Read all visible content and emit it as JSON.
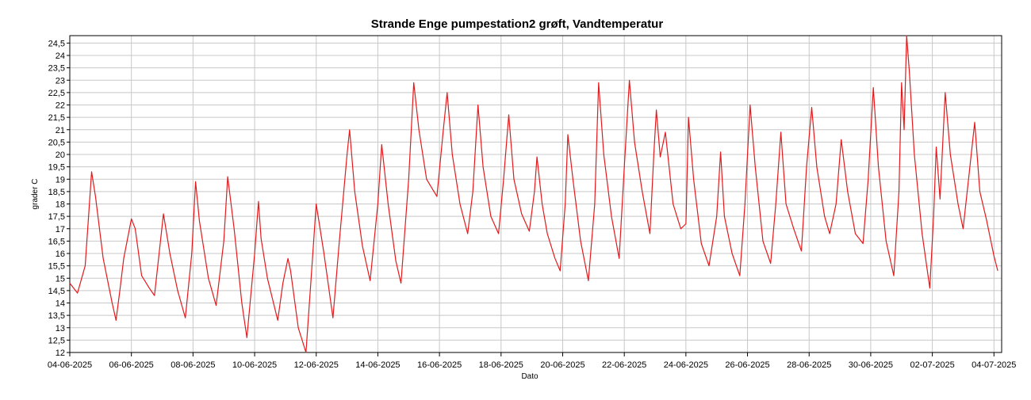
{
  "chart_data": {
    "type": "line",
    "title": "Strande Enge pumpestation2 grøft, Vandtemperatur",
    "xlabel": "Dato",
    "ylabel": "grader C",
    "ylim": [
      12,
      24.8
    ],
    "y_ticks": [
      "12",
      "12,5",
      "13",
      "13,5",
      "14",
      "14,5",
      "15",
      "15,5",
      "16",
      "16,5",
      "17",
      "17,5",
      "18",
      "18,5",
      "19",
      "19,5",
      "20",
      "20,5",
      "21",
      "21,5",
      "22",
      "22,5",
      "23",
      "23,5",
      "24",
      "24,5"
    ],
    "x_ticks": [
      "04-06-2025",
      "06-06-2025",
      "08-06-2025",
      "10-06-2025",
      "12-06-2025",
      "14-06-2025",
      "16-06-2025",
      "18-06-2025",
      "20-06-2025",
      "22-06-2025",
      "24-06-2025",
      "26-06-2025",
      "28-06-2025",
      "30-06-2025",
      "02-07-2025",
      "04-07-2025"
    ],
    "xlim": [
      "2025-06-04 00:00",
      "2025-07-04 06:00"
    ],
    "grid": true,
    "line_color": "#e31a1c",
    "series": [
      {
        "values": [
          [
            "2025-06-04 00:00",
            14.8
          ],
          [
            "2025-06-04 06:00",
            14.4
          ],
          [
            "2025-06-04 12:00",
            15.5
          ],
          [
            "2025-06-04 15:00",
            17.8
          ],
          [
            "2025-06-04 17:00",
            19.3
          ],
          [
            "2025-06-04 20:00",
            18.3
          ],
          [
            "2025-06-05 02:00",
            15.8
          ],
          [
            "2025-06-05 09:00",
            14.0
          ],
          [
            "2025-06-05 12:00",
            13.3
          ],
          [
            "2025-06-05 15:00",
            14.5
          ],
          [
            "2025-06-05 18:00",
            15.8
          ],
          [
            "2025-06-06 00:00",
            17.4
          ],
          [
            "2025-06-06 03:00",
            17.0
          ],
          [
            "2025-06-06 08:00",
            15.1
          ],
          [
            "2025-06-06 14:00",
            14.6
          ],
          [
            "2025-06-06 18:00",
            14.3
          ],
          [
            "2025-06-06 22:00",
            16.2
          ],
          [
            "2025-06-07 01:00",
            17.6
          ],
          [
            "2025-06-07 06:00",
            16.0
          ],
          [
            "2025-06-07 12:00",
            14.5
          ],
          [
            "2025-06-07 18:00",
            13.4
          ],
          [
            "2025-06-07 23:00",
            16.0
          ],
          [
            "2025-06-08 02:00",
            18.9
          ],
          [
            "2025-06-08 05:00",
            17.3
          ],
          [
            "2025-06-08 12:00",
            15.0
          ],
          [
            "2025-06-08 18:00",
            13.9
          ],
          [
            "2025-06-09 00:00",
            16.5
          ],
          [
            "2025-06-09 03:00",
            19.1
          ],
          [
            "2025-06-09 08:00",
            17.0
          ],
          [
            "2025-06-09 14:00",
            14.0
          ],
          [
            "2025-06-09 18:00",
            12.6
          ],
          [
            "2025-06-10 00:00",
            16.0
          ],
          [
            "2025-06-10 03:00",
            18.1
          ],
          [
            "2025-06-10 05:00",
            16.6
          ],
          [
            "2025-06-10 10:00",
            15.0
          ],
          [
            "2025-06-10 18:00",
            13.3
          ],
          [
            "2025-06-10 22:00",
            14.8
          ],
          [
            "2025-06-11 02:00",
            15.8
          ],
          [
            "2025-06-11 04:00",
            15.3
          ],
          [
            "2025-06-11 10:00",
            13.0
          ],
          [
            "2025-06-11 16:00",
            12.0
          ],
          [
            "2025-06-11 20:00",
            15.0
          ],
          [
            "2025-06-12 00:00",
            18.0
          ],
          [
            "2025-06-12 06:00",
            16.0
          ],
          [
            "2025-06-12 13:00",
            13.4
          ],
          [
            "2025-06-12 18:00",
            16.5
          ],
          [
            "2025-06-13 00:00",
            20.0
          ],
          [
            "2025-06-13 02:00",
            21.0
          ],
          [
            "2025-06-13 06:00",
            18.5
          ],
          [
            "2025-06-13 12:00",
            16.3
          ],
          [
            "2025-06-13 18:00",
            14.9
          ],
          [
            "2025-06-14 00:00",
            18.0
          ],
          [
            "2025-06-14 03:00",
            20.4
          ],
          [
            "2025-06-14 08:00",
            18.0
          ],
          [
            "2025-06-14 14:00",
            15.7
          ],
          [
            "2025-06-14 18:00",
            14.8
          ],
          [
            "2025-06-15 00:00",
            19.0
          ],
          [
            "2025-06-15 04:00",
            22.9
          ],
          [
            "2025-06-15 08:00",
            21.0
          ],
          [
            "2025-06-15 14:00",
            19.0
          ],
          [
            "2025-06-15 22:00",
            18.3
          ],
          [
            "2025-06-16 03:00",
            21.0
          ],
          [
            "2025-06-16 06:00",
            22.5
          ],
          [
            "2025-06-16 10:00",
            20.0
          ],
          [
            "2025-06-16 16:00",
            18.0
          ],
          [
            "2025-06-16 22:00",
            16.8
          ],
          [
            "2025-06-17 02:00",
            18.5
          ],
          [
            "2025-06-17 06:00",
            22.0
          ],
          [
            "2025-06-17 10:00",
            19.5
          ],
          [
            "2025-06-17 16:00",
            17.5
          ],
          [
            "2025-06-17 22:00",
            16.8
          ],
          [
            "2025-06-18 02:00",
            19.0
          ],
          [
            "2025-06-18 06:00",
            21.6
          ],
          [
            "2025-06-18 10:00",
            19.0
          ],
          [
            "2025-06-18 16:00",
            17.6
          ],
          [
            "2025-06-18 22:00",
            16.9
          ],
          [
            "2025-06-19 02:00",
            18.5
          ],
          [
            "2025-06-19 04:00",
            19.9
          ],
          [
            "2025-06-19 08:00",
            18.0
          ],
          [
            "2025-06-19 12:00",
            16.8
          ],
          [
            "2025-06-19 18:00",
            15.8
          ],
          [
            "2025-06-19 22:00",
            15.3
          ],
          [
            "2025-06-20 02:00",
            18.0
          ],
          [
            "2025-06-20 04:00",
            20.8
          ],
          [
            "2025-06-20 08:00",
            19.0
          ],
          [
            "2025-06-20 14:00",
            16.5
          ],
          [
            "2025-06-20 20:00",
            14.9
          ],
          [
            "2025-06-21 01:00",
            18.0
          ],
          [
            "2025-06-21 04:00",
            22.9
          ],
          [
            "2025-06-21 08:00",
            20.0
          ],
          [
            "2025-06-21 14:00",
            17.5
          ],
          [
            "2025-06-21 20:00",
            15.8
          ],
          [
            "2025-06-22 00:00",
            19.5
          ],
          [
            "2025-06-22 04:00",
            23.0
          ],
          [
            "2025-06-22 08:00",
            20.5
          ],
          [
            "2025-06-22 14:00",
            18.5
          ],
          [
            "2025-06-22 20:00",
            16.8
          ],
          [
            "2025-06-22 23:00",
            20.0
          ],
          [
            "2025-06-23 01:00",
            21.8
          ],
          [
            "2025-06-23 04:00",
            19.9
          ],
          [
            "2025-06-23 08:00",
            20.9
          ],
          [
            "2025-06-23 14:00",
            18.0
          ],
          [
            "2025-06-23 20:00",
            17.0
          ],
          [
            "2025-06-24 00:00",
            17.2
          ],
          [
            "2025-06-24 02:00",
            21.5
          ],
          [
            "2025-06-24 06:00",
            19.0
          ],
          [
            "2025-06-24 12:00",
            16.4
          ],
          [
            "2025-06-24 18:00",
            15.5
          ],
          [
            "2025-06-25 00:00",
            17.5
          ],
          [
            "2025-06-25 03:00",
            20.1
          ],
          [
            "2025-06-25 06:00",
            17.5
          ],
          [
            "2025-06-25 12:00",
            16.0
          ],
          [
            "2025-06-25 18:00",
            15.1
          ],
          [
            "2025-06-25 22:00",
            18.0
          ],
          [
            "2025-06-26 02:00",
            22.0
          ],
          [
            "2025-06-26 06:00",
            19.5
          ],
          [
            "2025-06-26 12:00",
            16.5
          ],
          [
            "2025-06-26 18:00",
            15.6
          ],
          [
            "2025-06-26 22:00",
            18.0
          ],
          [
            "2025-06-27 02:00",
            20.9
          ],
          [
            "2025-06-27 06:00",
            18.0
          ],
          [
            "2025-06-27 12:00",
            17.0
          ],
          [
            "2025-06-27 18:00",
            16.1
          ],
          [
            "2025-06-27 22:00",
            19.5
          ],
          [
            "2025-06-28 02:00",
            21.9
          ],
          [
            "2025-06-28 06:00",
            19.5
          ],
          [
            "2025-06-28 12:00",
            17.5
          ],
          [
            "2025-06-28 16:00",
            16.8
          ],
          [
            "2025-06-28 21:00",
            18.0
          ],
          [
            "2025-06-29 01:00",
            20.6
          ],
          [
            "2025-06-29 06:00",
            18.5
          ],
          [
            "2025-06-29 12:00",
            16.8
          ],
          [
            "2025-06-29 18:00",
            16.4
          ],
          [
            "2025-06-29 22:00",
            19.0
          ],
          [
            "2025-06-30 02:00",
            22.7
          ],
          [
            "2025-06-30 06:00",
            19.5
          ],
          [
            "2025-06-30 12:00",
            16.5
          ],
          [
            "2025-06-30 18:00",
            15.1
          ],
          [
            "2025-06-30 22:00",
            18.5
          ],
          [
            "2025-07-01 00:00",
            22.9
          ],
          [
            "2025-07-01 02:00",
            21.0
          ],
          [
            "2025-07-01 04:00",
            24.8
          ],
          [
            "2025-07-01 06:00",
            23.4
          ],
          [
            "2025-07-01 10:00",
            20.0
          ],
          [
            "2025-07-01 16:00",
            16.8
          ],
          [
            "2025-07-01 22:00",
            14.6
          ],
          [
            "2025-07-02 01:00",
            17.5
          ],
          [
            "2025-07-02 03:00",
            20.3
          ],
          [
            "2025-07-02 06:00",
            18.2
          ],
          [
            "2025-07-02 10:00",
            22.5
          ],
          [
            "2025-07-02 14:00",
            20.0
          ],
          [
            "2025-07-02 20:00",
            18.0
          ],
          [
            "2025-07-03 00:00",
            17.0
          ],
          [
            "2025-07-03 04:00",
            18.9
          ],
          [
            "2025-07-03 09:00",
            21.3
          ],
          [
            "2025-07-03 13:00",
            18.5
          ],
          [
            "2025-07-03 18:00",
            17.4
          ],
          [
            "2025-07-04 00:00",
            15.9
          ],
          [
            "2025-07-04 03:00",
            15.3
          ]
        ]
      }
    ]
  }
}
